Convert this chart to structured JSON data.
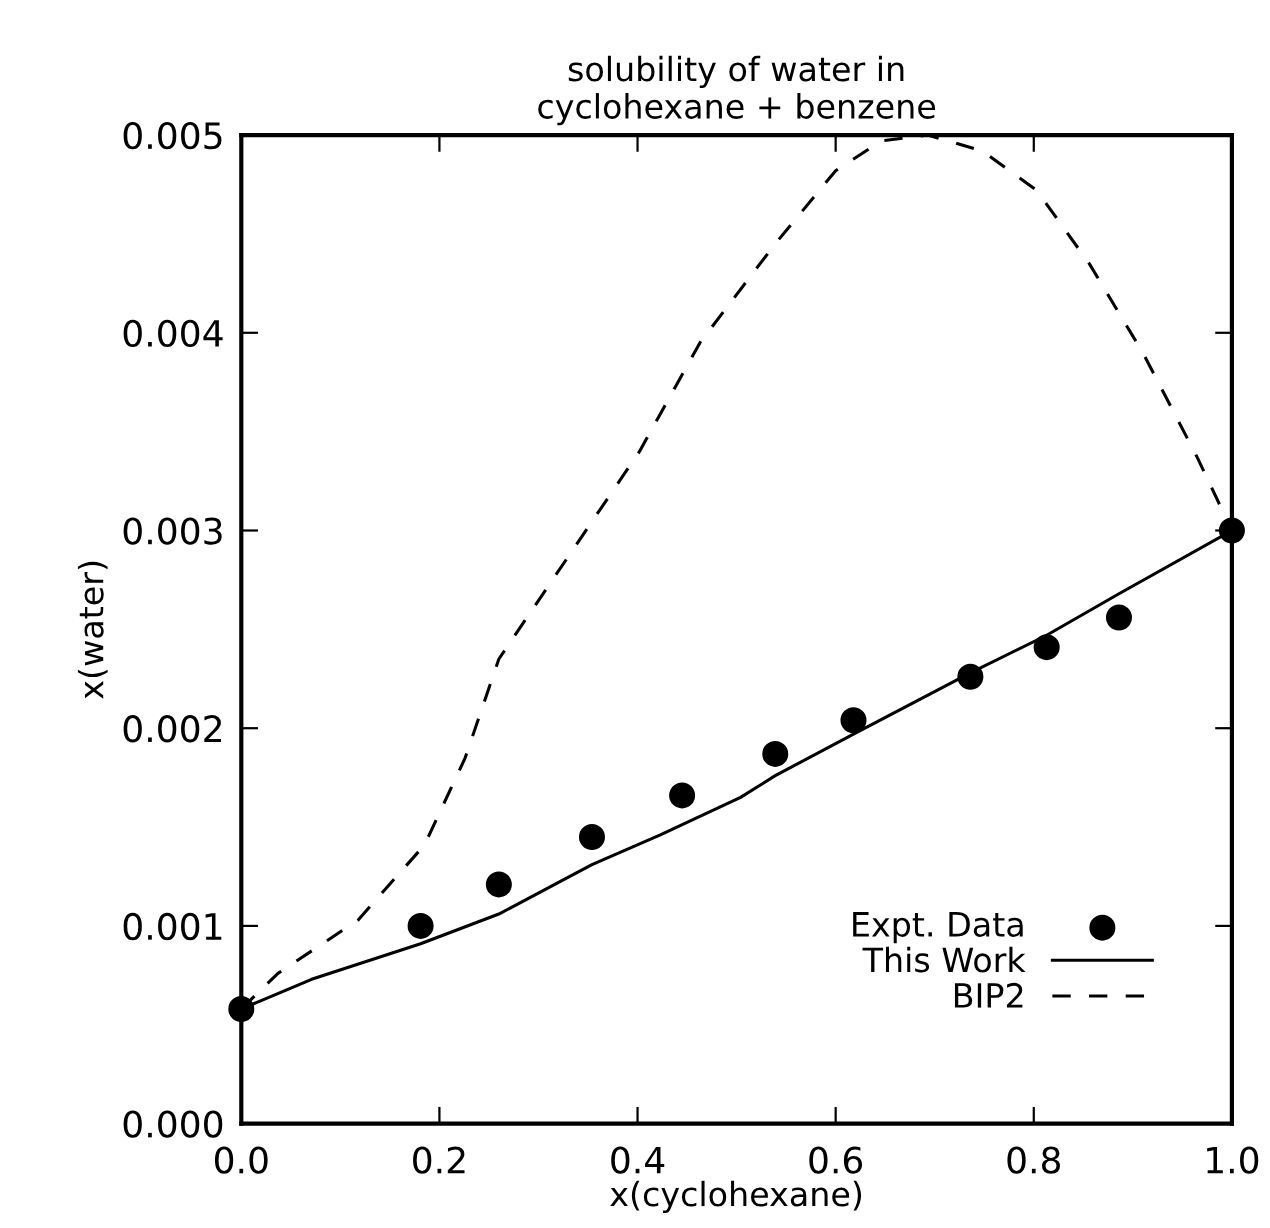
{
  "chart_data": {
    "type": "line",
    "title": "solubility of water in\ncyclohexane + benzene",
    "xlabel": "x(cyclohexane)",
    "ylabel": "x(water)",
    "xlim": [
      0.0,
      1.0
    ],
    "xticks": [
      {
        "value": 0,
        "label": "0.0"
      },
      {
        "value": 0.2,
        "label": "0.2"
      },
      {
        "value": 0.4,
        "label": "0.4"
      },
      {
        "value": 0.6,
        "label": "0.6"
      },
      {
        "value": 0.8,
        "label": "0.8"
      },
      {
        "value": 1.0,
        "label": "1.0"
      }
    ],
    "ylim": [
      0.0,
      0.005
    ],
    "yticks": [
      {
        "value": 0,
        "label": "0.000"
      },
      {
        "value": 0.001,
        "label": "0.001"
      },
      {
        "value": 0.002,
        "label": "0.002"
      },
      {
        "value": 0.003,
        "label": "0.003"
      },
      {
        "value": 0.004,
        "label": "0.004"
      },
      {
        "value": 0.005,
        "label": "0.005"
      }
    ],
    "grid": false,
    "legend": "bottom right",
    "series": [
      {
        "name": "Expt. Data",
        "type": "scatter",
        "marker": "circle",
        "color": "#000000",
        "x": [
          0.0,
          0.181,
          0.26,
          0.354,
          0.445,
          0.539,
          0.618,
          0.736,
          0.813,
          0.886,
          1.0
        ],
        "values": [
          0.00058,
          0.001,
          0.00121,
          0.00145,
          0.00166,
          0.00187,
          0.00204,
          0.00226,
          0.00241,
          0.00256,
          0.003
        ]
      },
      {
        "name": "This Work",
        "line_style": "solid",
        "color": "#000000",
        "x": [
          0.0,
          0.071,
          0.181,
          0.26,
          0.354,
          0.423,
          0.504,
          0.539,
          0.618,
          0.736,
          0.813,
          0.886,
          1.0
        ],
        "values": [
          0.00058,
          0.00073,
          0.00091,
          0.00106,
          0.00131,
          0.00146,
          0.00165,
          0.00176,
          0.00197,
          0.00228,
          0.00247,
          0.00268,
          0.003
        ]
      },
      {
        "name": "BIP2",
        "line_style": "dashed",
        "color": "#000000",
        "x": [
          0.0,
          0.037,
          0.118,
          0.185,
          0.226,
          0.26,
          0.402,
          0.463,
          0.539,
          0.6,
          0.646,
          0.693,
          0.748,
          0.803,
          0.856,
          0.91,
          0.965,
          1.0
        ],
        "values": [
          0.00058,
          0.00076,
          0.00103,
          0.00141,
          0.00185,
          0.00235,
          0.0034,
          0.00395,
          0.00445,
          0.00482,
          0.00497,
          0.005,
          0.00492,
          0.00472,
          0.00435,
          0.0039,
          0.00337,
          0.003
        ]
      }
    ]
  }
}
